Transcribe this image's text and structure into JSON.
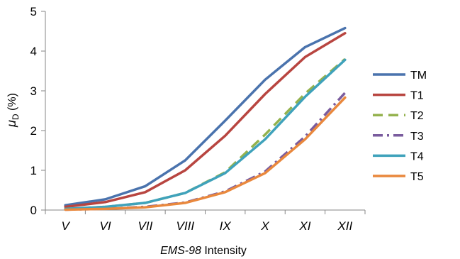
{
  "chart_data": {
    "type": "line",
    "categories": [
      "V",
      "VI",
      "VII",
      "VIII",
      "IX",
      "X",
      "XI",
      "XII"
    ],
    "series": [
      {
        "name": "TM",
        "color": "#4a73ad",
        "dash": "solid",
        "values": [
          0.12,
          0.27,
          0.6,
          1.25,
          2.25,
          3.28,
          4.1,
          4.58
        ]
      },
      {
        "name": "T1",
        "color": "#b84540",
        "dash": "solid",
        "values": [
          0.08,
          0.2,
          0.45,
          1.0,
          1.87,
          2.92,
          3.85,
          4.45
        ]
      },
      {
        "name": "T2",
        "color": "#94b24e",
        "dash": "dashed",
        "values": [
          0.03,
          0.08,
          0.18,
          0.43,
          0.95,
          1.9,
          2.93,
          3.8
        ]
      },
      {
        "name": "T3",
        "color": "#7a5c9e",
        "dash": "dashdot",
        "values": [
          0.01,
          0.03,
          0.08,
          0.19,
          0.47,
          0.97,
          1.85,
          2.95
        ]
      },
      {
        "name": "T4",
        "color": "#3fa2bb",
        "dash": "solid",
        "values": [
          0.03,
          0.08,
          0.18,
          0.43,
          0.93,
          1.78,
          2.85,
          3.78
        ]
      },
      {
        "name": "T5",
        "color": "#e9883d",
        "dash": "solid",
        "values": [
          0.01,
          0.03,
          0.07,
          0.18,
          0.45,
          0.93,
          1.78,
          2.83
        ]
      }
    ],
    "yticks": [
      "0",
      "1",
      "2",
      "3",
      "4",
      "5"
    ],
    "ylim": [
      0,
      5
    ],
    "xlabel_italic": "EMS-98",
    "xlabel_rest": " Intensity",
    "ylabel_mu": "μ",
    "ylabel_sub": "D",
    "ylabel_rest": " (%)",
    "grid": false,
    "legend_position": "right"
  }
}
